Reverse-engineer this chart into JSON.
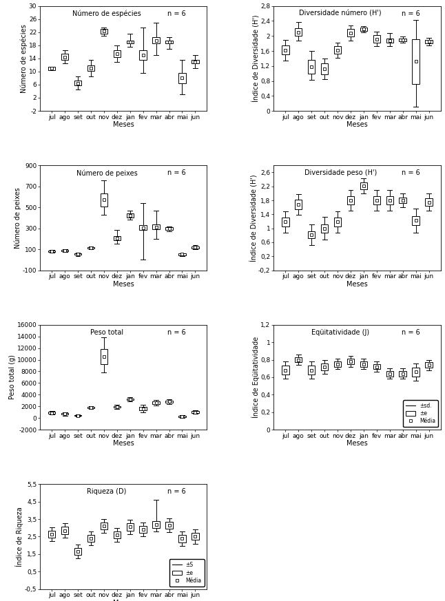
{
  "months": [
    "jul",
    "ago",
    "set",
    "out",
    "nov",
    "dez",
    "jan",
    "fev",
    "mar",
    "abr",
    "mai",
    "jun"
  ],
  "panels": [
    {
      "title": "Número de espécies",
      "n_label": "n = 6",
      "ylabel": "Número de espécies",
      "xlabel": "Meses",
      "ylim": [
        -2,
        30
      ],
      "yticks": [
        -2,
        2,
        6,
        10,
        14,
        18,
        22,
        26,
        30
      ],
      "mean": [
        11.0,
        14.5,
        6.5,
        11.0,
        22.3,
        15.5,
        19.0,
        15.0,
        19.5,
        19.0,
        8.0,
        13.0
      ],
      "se_lo": [
        10.5,
        13.5,
        5.8,
        10.2,
        21.5,
        14.5,
        18.5,
        13.5,
        18.5,
        18.5,
        6.5,
        12.5
      ],
      "se_hi": [
        11.5,
        15.5,
        7.2,
        11.8,
        23.0,
        16.5,
        19.5,
        16.5,
        20.5,
        19.5,
        9.5,
        13.5
      ],
      "sd_lo": [
        10.7,
        12.5,
        4.5,
        8.5,
        21.0,
        13.0,
        17.5,
        9.5,
        15.0,
        17.0,
        3.0,
        11.0
      ],
      "sd_hi": [
        11.3,
        16.5,
        8.5,
        13.5,
        23.5,
        18.0,
        21.5,
        23.5,
        25.0,
        20.5,
        13.5,
        15.0
      ]
    },
    {
      "title": "Diversidade número (H')",
      "n_label": "n = 6",
      "ylabel": "Índice de Diversidade (H')",
      "xlabel": "Meses",
      "ylim": [
        0.0,
        2.8
      ],
      "yticks": [
        0.0,
        0.4,
        0.8,
        1.2,
        1.6,
        2.0,
        2.4,
        2.8
      ],
      "mean": [
        1.62,
        2.1,
        1.18,
        1.12,
        1.62,
        2.08,
        2.18,
        1.92,
        1.88,
        1.9,
        1.32,
        1.85
      ],
      "se_lo": [
        1.5,
        2.0,
        1.0,
        0.98,
        1.52,
        1.98,
        2.14,
        1.82,
        1.82,
        1.86,
        0.72,
        1.8
      ],
      "se_hi": [
        1.74,
        2.2,
        1.36,
        1.26,
        1.72,
        2.18,
        2.22,
        2.02,
        1.94,
        1.94,
        1.92,
        1.9
      ],
      "sd_lo": [
        1.35,
        1.88,
        0.82,
        0.84,
        1.42,
        1.88,
        2.1,
        1.72,
        1.72,
        1.82,
        0.12,
        1.75
      ],
      "sd_hi": [
        1.89,
        2.38,
        1.6,
        1.4,
        1.82,
        2.28,
        2.26,
        2.12,
        2.08,
        1.98,
        2.42,
        1.95
      ]
    },
    {
      "title": "Número de peixes",
      "n_label": "n = 6",
      "ylabel": "Número de peixes",
      "xlabel": "Meses",
      "ylim": [
        -100,
        900
      ],
      "yticks": [
        -100,
        100,
        300,
        500,
        700,
        900
      ],
      "mean": [
        80,
        88,
        52,
        115,
        570,
        208,
        425,
        305,
        312,
        295,
        52,
        118
      ],
      "se_lo": [
        72,
        82,
        46,
        108,
        510,
        188,
        405,
        282,
        290,
        282,
        42,
        108
      ],
      "se_hi": [
        88,
        94,
        58,
        122,
        630,
        228,
        445,
        328,
        334,
        308,
        62,
        128
      ],
      "sd_lo": [
        65,
        75,
        38,
        100,
        430,
        155,
        385,
        0,
        200,
        270,
        32,
        98
      ],
      "sd_hi": [
        95,
        101,
        66,
        130,
        755,
        285,
        470,
        540,
        470,
        320,
        62,
        138
      ]
    },
    {
      "title": "Diversidade peso (H')",
      "n_label": "n = 6",
      "ylabel": "Índice de Diversidade (H')",
      "xlabel": "Meses",
      "ylim": [
        -0.2,
        2.8
      ],
      "yticks": [
        -0.2,
        0.2,
        0.6,
        1.0,
        1.4,
        1.8,
        2.2,
        2.6
      ],
      "mean": [
        1.18,
        1.68,
        0.82,
        1.0,
        1.18,
        1.8,
        2.22,
        1.8,
        1.8,
        1.8,
        1.22,
        1.75
      ],
      "se_lo": [
        1.05,
        1.55,
        0.72,
        0.88,
        1.05,
        1.68,
        2.12,
        1.68,
        1.68,
        1.72,
        1.1,
        1.65
      ],
      "se_hi": [
        1.31,
        1.81,
        0.92,
        1.12,
        1.31,
        1.92,
        2.32,
        1.92,
        1.92,
        1.88,
        1.34,
        1.85
      ],
      "sd_lo": [
        0.88,
        1.38,
        0.52,
        0.68,
        0.88,
        1.5,
        2.0,
        1.5,
        1.5,
        1.6,
        0.88,
        1.5
      ],
      "sd_hi": [
        1.48,
        1.98,
        1.12,
        1.32,
        1.48,
        2.1,
        2.44,
        2.1,
        2.1,
        2.0,
        1.56,
        2.0
      ]
    },
    {
      "title": "Peso total",
      "n_label": "n = 6",
      "ylabel": "Peso total (g)",
      "xlabel": "Meses",
      "ylim": [
        -2000,
        16000
      ],
      "yticks": [
        -2000,
        0,
        2000,
        4000,
        6000,
        8000,
        10000,
        12000,
        14000,
        16000
      ],
      "mean": [
        900,
        700,
        400,
        1800,
        10500,
        1900,
        3200,
        1600,
        2600,
        2800,
        250,
        1000
      ],
      "se_lo": [
        750,
        580,
        320,
        1680,
        9200,
        1750,
        3050,
        1350,
        2400,
        2600,
        150,
        850
      ],
      "se_hi": [
        1050,
        820,
        480,
        1920,
        11800,
        2050,
        3350,
        1850,
        2800,
        3000,
        350,
        1150
      ],
      "sd_lo": [
        580,
        400,
        200,
        1550,
        7800,
        1550,
        2800,
        950,
        2100,
        2350,
        50,
        680
      ],
      "sd_hi": [
        1220,
        1000,
        600,
        2050,
        13800,
        2250,
        3600,
        2250,
        3100,
        3250,
        450,
        1320
      ]
    },
    {
      "title": "Eqüitatividade (J)",
      "n_label": "n = 6",
      "ylabel": "Índice de Eqüitatividade",
      "xlabel": "Meses",
      "ylim": [
        0.0,
        1.2
      ],
      "yticks": [
        0.0,
        0.2,
        0.4,
        0.6,
        0.8,
        1.0,
        1.2
      ],
      "mean": [
        0.68,
        0.8,
        0.68,
        0.72,
        0.75,
        0.78,
        0.75,
        0.72,
        0.64,
        0.64,
        0.66,
        0.74
      ],
      "se_lo": [
        0.63,
        0.77,
        0.63,
        0.68,
        0.72,
        0.75,
        0.72,
        0.69,
        0.61,
        0.61,
        0.61,
        0.71
      ],
      "se_hi": [
        0.73,
        0.83,
        0.73,
        0.76,
        0.78,
        0.81,
        0.78,
        0.75,
        0.67,
        0.67,
        0.71,
        0.77
      ],
      "sd_lo": [
        0.58,
        0.74,
        0.58,
        0.64,
        0.69,
        0.72,
        0.69,
        0.66,
        0.58,
        0.58,
        0.56,
        0.68
      ],
      "sd_hi": [
        0.78,
        0.86,
        0.78,
        0.8,
        0.81,
        0.84,
        0.81,
        0.78,
        0.7,
        0.7,
        0.76,
        0.8
      ]
    },
    {
      "title": "Riqueza (D)",
      "n_label": "n = 6",
      "ylabel": "Índice de Riqueza",
      "xlabel": "Meses",
      "ylim": [
        -0.5,
        5.5
      ],
      "yticks": [
        -0.5,
        0.5,
        1.5,
        2.5,
        3.5,
        4.5,
        5.5
      ],
      "mean": [
        2.62,
        2.85,
        1.65,
        2.4,
        3.1,
        2.6,
        3.05,
        2.9,
        3.2,
        3.15,
        2.38,
        2.5
      ],
      "se_lo": [
        2.42,
        2.65,
        1.45,
        2.2,
        2.9,
        2.4,
        2.85,
        2.7,
        3.0,
        2.95,
        2.18,
        2.3
      ],
      "se_hi": [
        2.82,
        3.05,
        1.85,
        2.6,
        3.3,
        2.8,
        3.25,
        3.1,
        3.4,
        3.35,
        2.58,
        2.7
      ],
      "sd_lo": [
        2.22,
        2.45,
        1.25,
        2.0,
        2.7,
        2.2,
        2.65,
        2.5,
        2.8,
        2.75,
        1.98,
        2.1
      ],
      "sd_hi": [
        3.02,
        3.25,
        2.05,
        2.8,
        3.5,
        3.0,
        3.45,
        3.3,
        4.6,
        3.55,
        2.78,
        2.9
      ]
    }
  ],
  "legend_sd_label": "±sd.",
  "legend_se_label": "±e",
  "legend_mean_label": "Média",
  "legend_sd_label2": "±S",
  "font_size": 7.0
}
